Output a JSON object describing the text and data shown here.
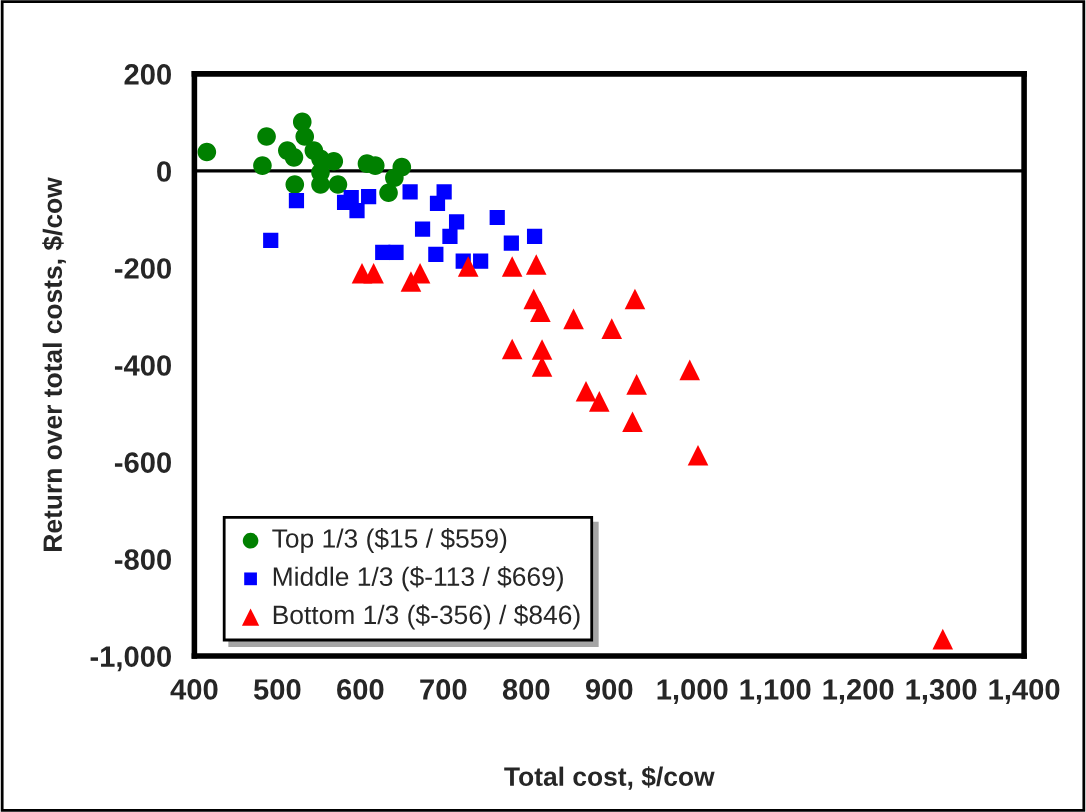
{
  "chart_data": {
    "type": "scatter",
    "xlabel": "Total cost, $/cow",
    "ylabel": "Return over total costs, $/cow",
    "xlim": [
      400,
      1400
    ],
    "ylim": [
      -1000,
      200
    ],
    "xticks": [
      {
        "value": 400,
        "label": "400"
      },
      {
        "value": 500,
        "label": "500"
      },
      {
        "value": 600,
        "label": "600"
      },
      {
        "value": 700,
        "label": "700"
      },
      {
        "value": 800,
        "label": "800"
      },
      {
        "value": 900,
        "label": "900"
      },
      {
        "value": 1000,
        "label": "1,000"
      },
      {
        "value": 1100,
        "label": "1,100"
      },
      {
        "value": 1200,
        "label": "1,200"
      },
      {
        "value": 1300,
        "label": "1,300"
      },
      {
        "value": 1400,
        "label": "1,400"
      }
    ],
    "yticks": [
      {
        "value": -1000,
        "label": "-1,000"
      },
      {
        "value": -800,
        "label": "-800"
      },
      {
        "value": -600,
        "label": "-600"
      },
      {
        "value": -400,
        "label": "-400"
      },
      {
        "value": -200,
        "label": "-200"
      },
      {
        "value": 0,
        "label": "0"
      },
      {
        "value": 200,
        "label": "200"
      }
    ],
    "ref_lines": [
      {
        "axis": "y",
        "value": 0,
        "color": "#000000"
      }
    ],
    "grid": false,
    "legend": "bottom left",
    "series": [
      {
        "name": "Top 1/3 ($15 / $559)",
        "color": "#008000",
        "marker": "circle",
        "x": [
          415,
          487,
          482,
          530,
          533,
          512,
          520,
          544,
          552,
          568,
          552,
          552,
          521,
          573,
          608,
          618,
          650,
          641,
          634
        ],
        "values": [
          39,
          71,
          11,
          101,
          71,
          42,
          28,
          42,
          25,
          20,
          -3,
          -28,
          -28,
          -28,
          15,
          11,
          8,
          -14,
          -45
        ]
      },
      {
        "name": "Middle 1/3 ($-113 / $669)",
        "color": "#0000ff",
        "marker": "square",
        "x": [
          523,
          492,
          581,
          589,
          596,
          610,
          660,
          693,
          701,
          675,
          716,
          708,
          691,
          627,
          643,
          724,
          745,
          765,
          782,
          810
        ],
        "values": [
          -61,
          -143,
          -65,
          -55,
          -82,
          -53,
          -43,
          -67,
          -43,
          -120,
          -105,
          -135,
          -172,
          -168,
          -168,
          -186,
          -186,
          -96,
          -149,
          -135
        ]
      },
      {
        "name": "Bottom 1/3 ($-356) / $846)",
        "color": "#ff0000",
        "marker": "triangle",
        "x": [
          602,
          616,
          672,
          661,
          730,
          783,
          812,
          809,
          817,
          857,
          903,
          931,
          783,
          819,
          819,
          872,
          888,
          933,
          928,
          997,
          1007,
          1302
        ],
        "values": [
          -211,
          -211,
          -211,
          -228,
          -197,
          -197,
          -193,
          -264,
          -290,
          -305,
          -325,
          -264,
          -367,
          -368,
          -403,
          -454,
          -475,
          -440,
          -517,
          -410,
          -586,
          -965
        ]
      }
    ]
  }
}
